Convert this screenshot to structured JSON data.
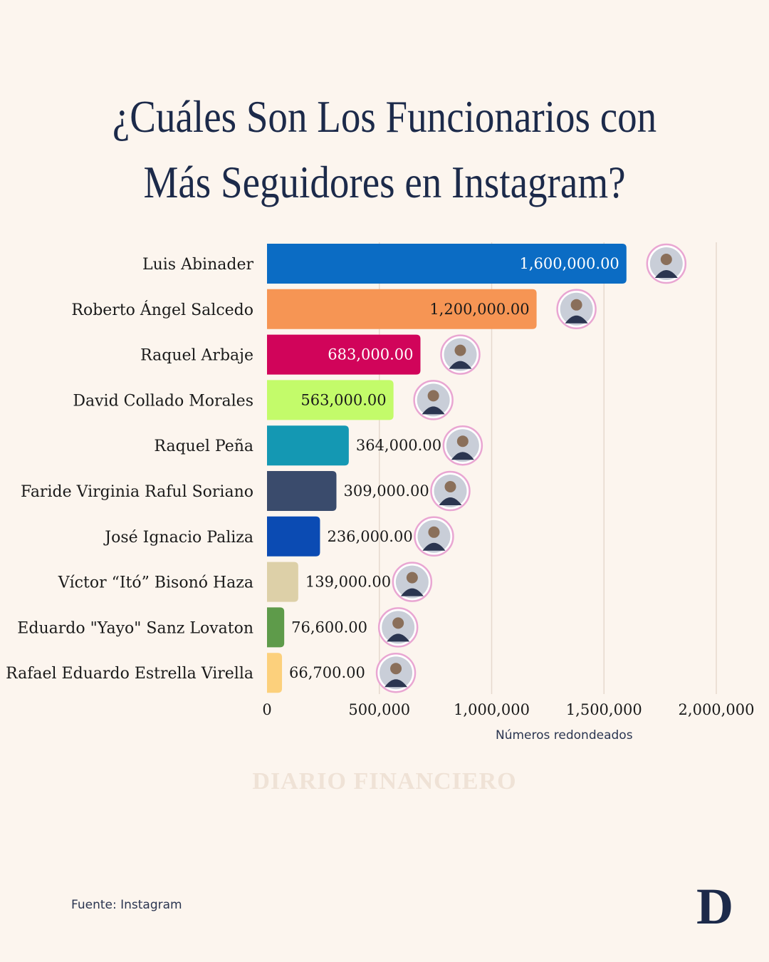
{
  "title_line1": "¿Cuáles Son Los Funcionarios con",
  "title_line2": "Más Seguidores en Instagram?",
  "note": "Números redondeados",
  "watermark": "DIARIO FINANCIERO",
  "source": "Fuente: Instagram",
  "logo": "D",
  "chart_data": {
    "type": "bar",
    "orientation": "horizontal",
    "categories": [
      "Luis Abinader",
      "Roberto Ángel Salcedo",
      "Raquel Arbaje",
      "David Collado Morales",
      "Raquel Peña",
      "Faride Virginia Raful Soriano",
      "José Ignacio Paliza",
      "Víctor “Itó” Bisonó Haza",
      "Eduardo \"Yayo\" Sanz Lovaton",
      "Rafael Eduardo Estrella Virella"
    ],
    "values": [
      1600000,
      1200000,
      683000,
      563000,
      364000,
      309000,
      236000,
      139000,
      76600,
      66700
    ],
    "value_labels": [
      "1,600,000.00",
      "1,200,000.00",
      "683,000.00",
      "563,000.00",
      "364,000.00",
      "309,000.00",
      "236,000.00",
      "139,000.00",
      "76,600.00",
      "66,700.00"
    ],
    "colors": [
      "#0b6cc4",
      "#f69554",
      "#d1045a",
      "#c3fb6a",
      "#1498b3",
      "#3a4b6c",
      "#0b4bb3",
      "#ddd0a8",
      "#5e9b4a",
      "#fcd07c"
    ],
    "label_inside": [
      true,
      true,
      true,
      true,
      false,
      false,
      false,
      false,
      false,
      false
    ],
    "label_colors": [
      "#ffffff",
      "#1a1a1a",
      "#ffffff",
      "#1a1a1a",
      "#1a1a1a",
      "#1a1a1a",
      "#1a1a1a",
      "#1a1a1a",
      "#1a1a1a",
      "#1a1a1a"
    ],
    "xlim": [
      0,
      2000000
    ],
    "xticks": [
      0,
      500000,
      1000000,
      1500000,
      2000000
    ],
    "xtick_labels": [
      "0",
      "500,000",
      "1,000,000",
      "1,500,000",
      "2,000,000"
    ],
    "grid": true,
    "avatars": [
      "person-photo",
      "person-photo",
      "person-photo",
      "person-photo",
      "person-photo",
      "person-photo",
      "person-photo",
      "person-photo",
      "person-photo",
      "person-photo"
    ]
  }
}
